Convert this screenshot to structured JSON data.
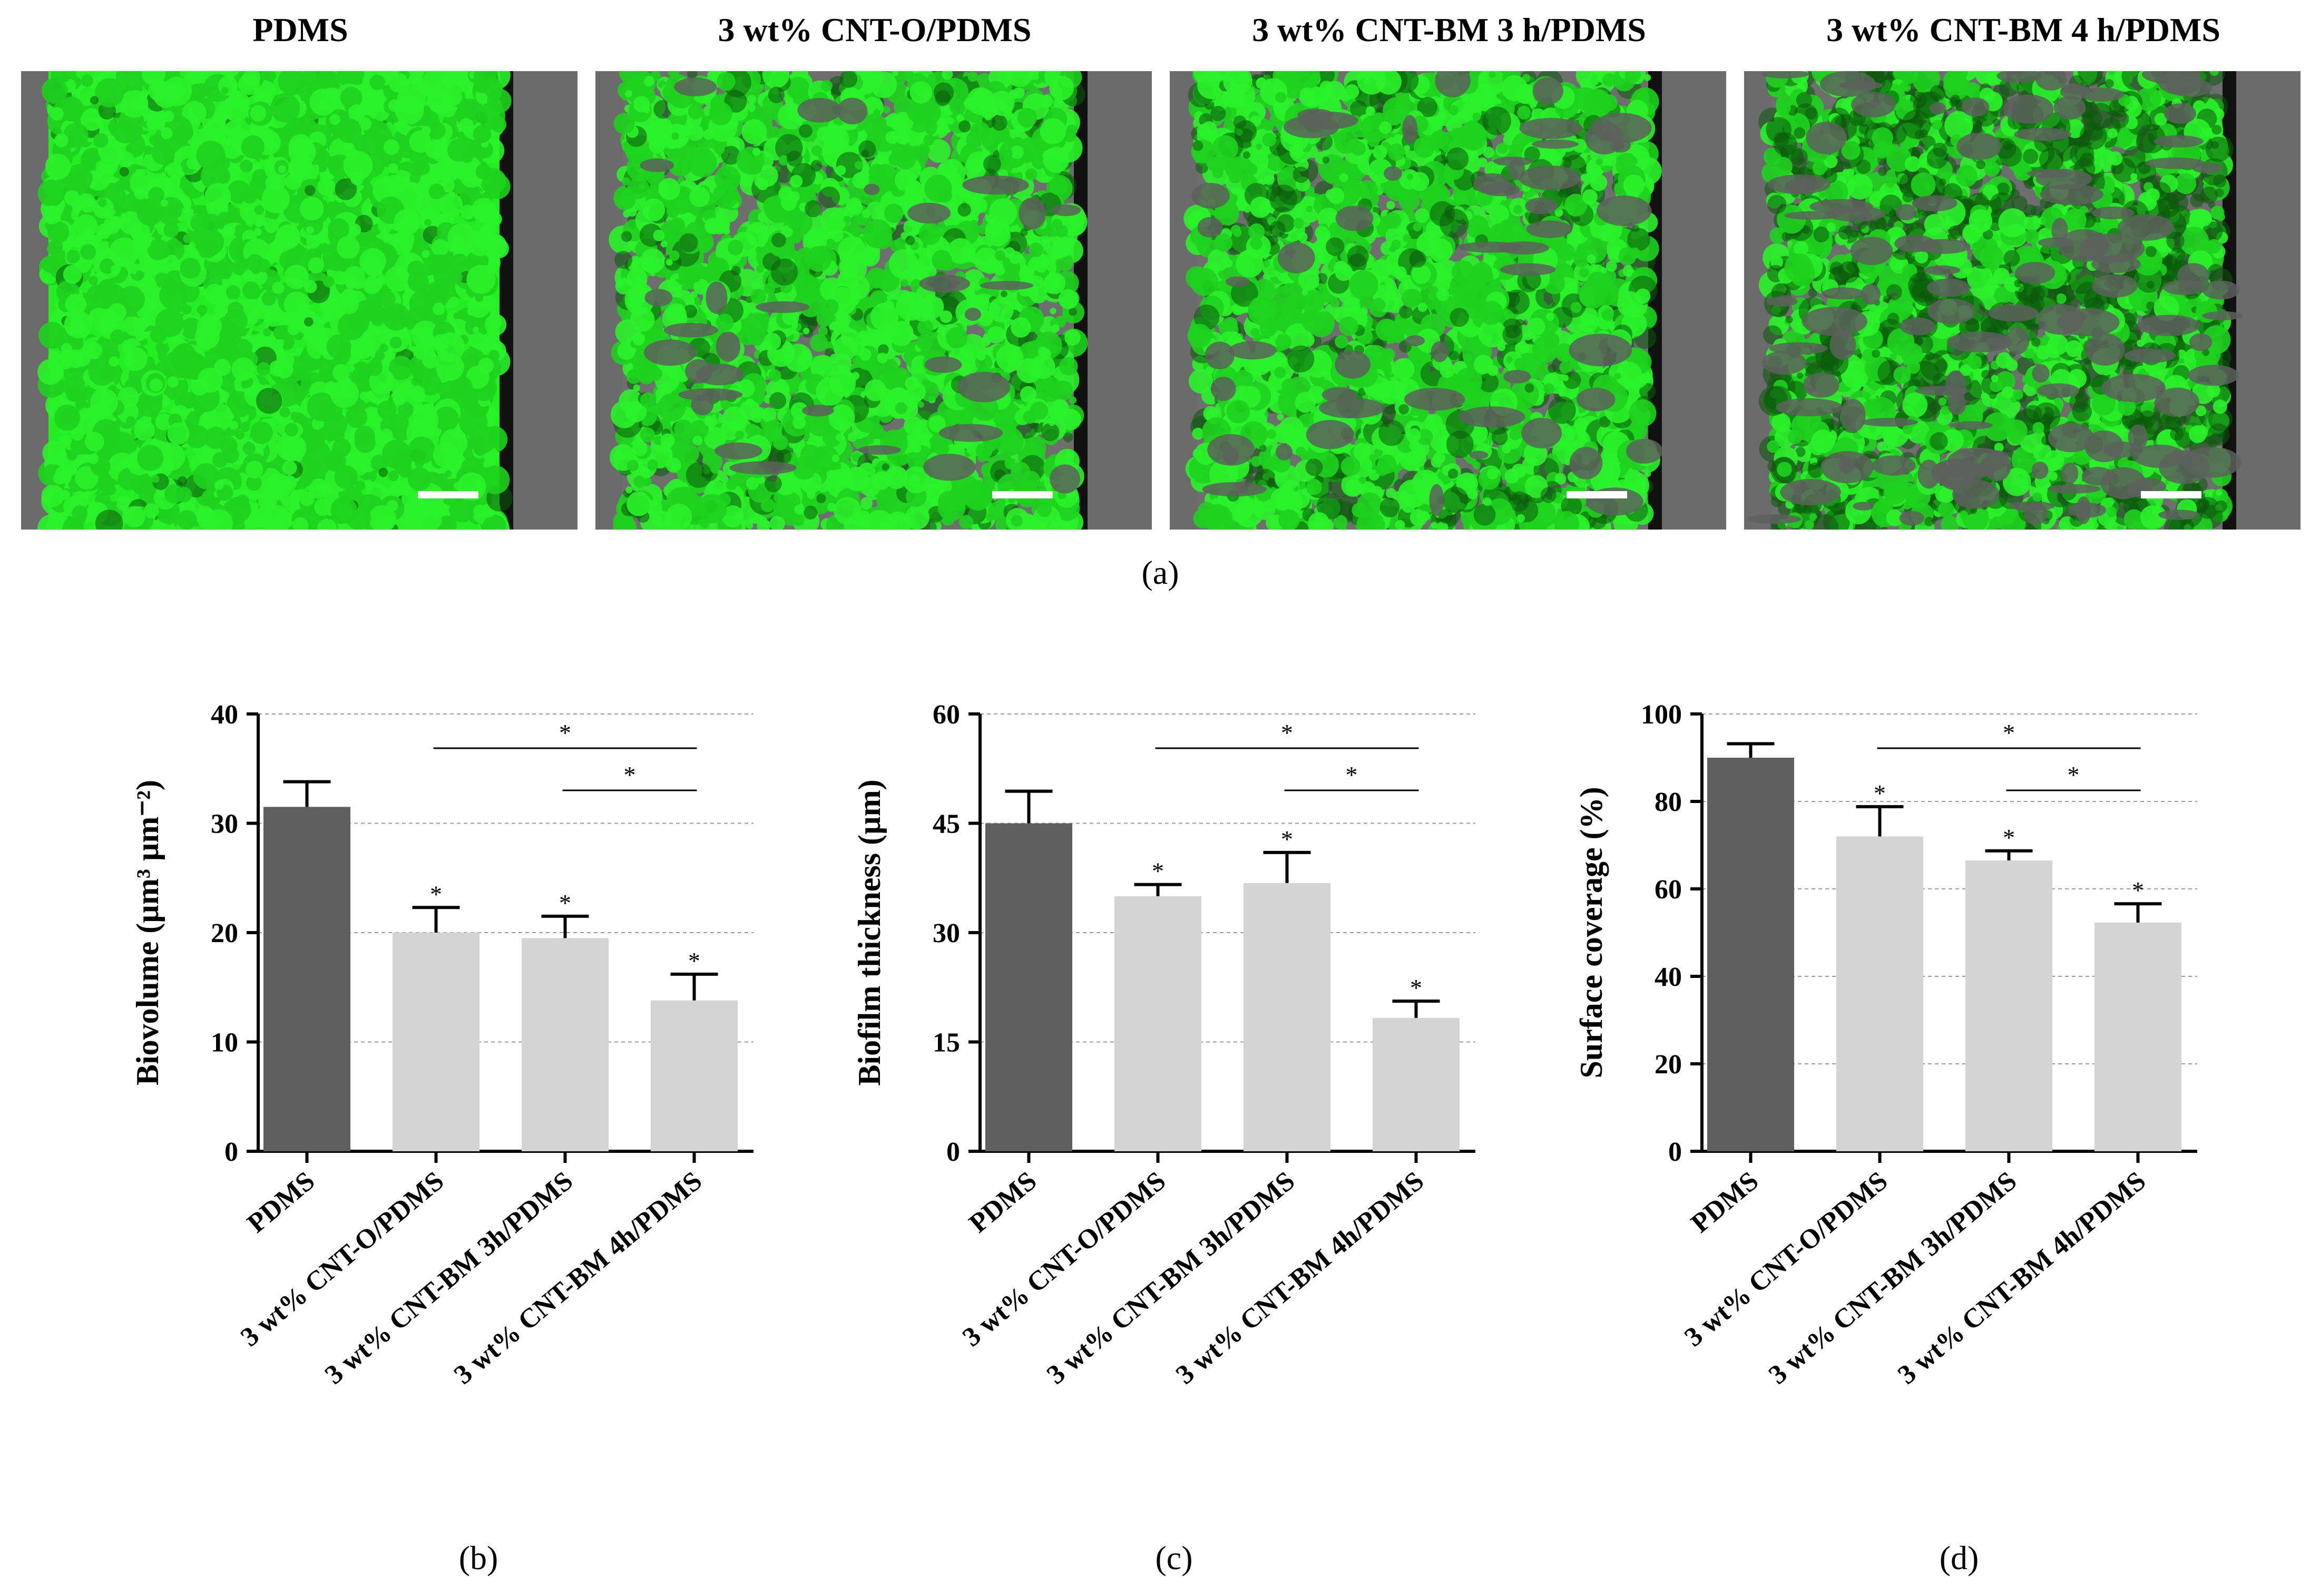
{
  "images": [
    {
      "title": "PDMS",
      "left_border": "#6b6b6b",
      "right_border": "#6b6b6b",
      "coverage": 0.97
    },
    {
      "title": "3 wt% CNT-O/PDMS",
      "left_border": "#6b6b6b",
      "right_border": "#6b6b6b",
      "coverage": 0.88
    },
    {
      "title": "3 wt% CNT-BM 3 h/PDMS",
      "left_border": "#6b6b6b",
      "right_border": "#6b6b6b",
      "coverage": 0.8
    },
    {
      "title": "3 wt% CNT-BM 4 h/PDMS",
      "left_border": "#6b6b6b",
      "right_border": "#6b6b6b",
      "coverage": 0.55
    }
  ],
  "panel_labels": {
    "a": "(a)",
    "b": "(b)",
    "c": "(c)",
    "d": "(d)"
  },
  "colors": {
    "biofilm": "#22ee22",
    "biofilm_dark": "#0b5a0b",
    "substrate": "#6e6e6e",
    "bar_dark": "#5f5f5f",
    "bar_light": "#d4d4d4",
    "scale_bar": "#ffffff"
  },
  "chart_data": [
    {
      "type": "bar",
      "id": "b",
      "categories": [
        "PDMS",
        "3 wt% CNT-O/PDMS",
        "3 wt% CNT-BM 3h/PDMS",
        "3 wt% CNT-BM 4h/PDMS"
      ],
      "values": [
        31.5,
        20.0,
        19.5,
        13.8
      ],
      "errors": [
        2.3,
        2.3,
        2.0,
        2.4
      ],
      "bar_colors": [
        "#5f5f5f",
        "#d4d4d4",
        "#d4d4d4",
        "#d4d4d4"
      ],
      "star_above_bar": [
        false,
        true,
        true,
        true
      ],
      "significance": [
        {
          "from": 1,
          "to": 3,
          "label": "*"
        },
        {
          "from": 2,
          "to": 3,
          "label": "*"
        }
      ],
      "ylabel": "Biovolume (µm³ µm⁻²)",
      "yticks": [
        0,
        10,
        20,
        30,
        40
      ],
      "ytick_labels": [
        "0",
        "10",
        "20",
        "30",
        "40"
      ],
      "ylim": [
        0,
        40
      ],
      "grid": true
    },
    {
      "type": "bar",
      "id": "c",
      "categories": [
        "PDMS",
        "3 wt% CNT-O/PDMS",
        "3 wt% CNT-BM 3h/PDMS",
        "3 wt% CNT-BM 4h/PDMS"
      ],
      "values": [
        45.0,
        35.0,
        36.8,
        18.3
      ],
      "errors": [
        4.4,
        1.6,
        4.2,
        2.3
      ],
      "bar_colors": [
        "#5f5f5f",
        "#d4d4d4",
        "#d4d4d4",
        "#d4d4d4"
      ],
      "star_above_bar": [
        false,
        true,
        true,
        true
      ],
      "significance": [
        {
          "from": 1,
          "to": 3,
          "label": "*"
        },
        {
          "from": 2,
          "to": 3,
          "label": "*"
        }
      ],
      "ylabel": "Biofilm thickness (µm)",
      "yticks": [
        0,
        15,
        30,
        45,
        60
      ],
      "ytick_labels": [
        "0",
        "15",
        "30",
        "45",
        "60"
      ],
      "ylim": [
        0,
        60
      ],
      "grid": true
    },
    {
      "type": "bar",
      "id": "d",
      "categories": [
        "PDMS",
        "3 wt% CNT-O/PDMS",
        "3 wt% CNT-BM 3h/PDMS",
        "3 wt% CNT-BM 4h/PDMS"
      ],
      "values": [
        90.0,
        72.0,
        66.5,
        52.3
      ],
      "errors": [
        3.2,
        6.8,
        2.2,
        4.3
      ],
      "bar_colors": [
        "#5f5f5f",
        "#d4d4d4",
        "#d4d4d4",
        "#d4d4d4"
      ],
      "star_above_bar": [
        false,
        true,
        true,
        true
      ],
      "significance": [
        {
          "from": 1,
          "to": 3,
          "label": "*"
        },
        {
          "from": 2,
          "to": 3,
          "label": "*"
        }
      ],
      "ylabel": "Surface coverage (%)",
      "yticks": [
        0,
        20,
        40,
        60,
        80,
        100
      ],
      "ytick_labels": [
        "0",
        "20",
        "40",
        "60",
        "80",
        "100"
      ],
      "ylim": [
        0,
        100
      ],
      "grid": true
    }
  ]
}
